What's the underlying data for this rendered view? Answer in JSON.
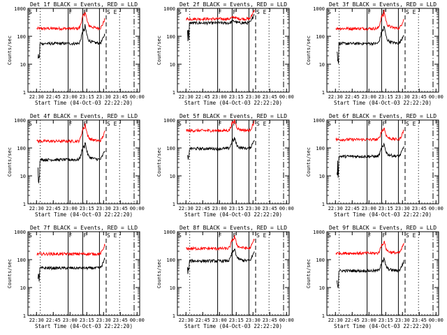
{
  "chart_data": {
    "type": "line",
    "series_legend": "BLACK = Events, RED = LLD",
    "xlabel": "Start Time (04-Oct-03 22:22:20)",
    "ylabel": "Counts/sec",
    "x_ticks": [
      "22:30",
      "22:45",
      "23:00",
      "23:15",
      "23:30",
      "23:45",
      "00:00"
    ],
    "x_tick_minutes": [
      7.67,
      22.67,
      37.67,
      52.67,
      67.67,
      82.67,
      97.67
    ],
    "xlim_minutes": [
      0,
      100
    ],
    "y_ticks": [
      "1",
      "10",
      "100",
      "1000"
    ],
    "ylim": [
      1,
      1000
    ],
    "yscale": "log",
    "markers": [
      {
        "label": "S",
        "minute": 0
      },
      {
        "label": "F",
        "minute": 36
      },
      {
        "label": "F",
        "minute": 49
      },
      {
        "label": "S",
        "minute": 70
      },
      {
        "label": "E",
        "minute": 76
      }
    ],
    "dotted_lines_minutes": [
      11,
      82
    ],
    "dashed_lines_minutes": [
      70
    ],
    "dashdot_lines_minutes": [
      95
    ],
    "panels": [
      {
        "title": "Det 1f BLACK = Events, RED = LLD",
        "black_base": 55,
        "red_base": 190,
        "red_bump": 3.0,
        "black_bump": 3.0
      },
      {
        "title": "Det 2f BLACK = Events, RED = LLD",
        "black_base": 300,
        "red_base": 420,
        "red_bump": 1.15,
        "black_bump": 1.15
      },
      {
        "title": "Det 3f BLACK = Events, RED = LLD",
        "black_base": 55,
        "red_base": 190,
        "red_bump": 3.0,
        "black_bump": 3.0
      },
      {
        "title": "Det 4f BLACK = Events, RED = LLD",
        "black_base": 38,
        "red_base": 175,
        "red_bump": 3.0,
        "black_bump": 3.0
      },
      {
        "title": "Det 5f BLACK = Events, RED = LLD",
        "black_base": 95,
        "red_base": 420,
        "red_bump": 2.0,
        "black_bump": 2.0
      },
      {
        "title": "Det 6f BLACK = Events, RED = LLD",
        "black_base": 50,
        "red_base": 200,
        "red_bump": 2.2,
        "black_bump": 2.2
      },
      {
        "title": "Det 7f BLACK = Events, RED = LLD",
        "black_base": 50,
        "red_base": 160,
        "red_bump": 1.0,
        "black_bump": 1.0
      },
      {
        "title": "Det 8f BLACK = Events, RED = LLD",
        "black_base": 90,
        "red_base": 250,
        "red_bump": 2.2,
        "black_bump": 2.2
      },
      {
        "title": "Det 9f BLACK = Events, RED = LLD",
        "black_base": 40,
        "red_base": 170,
        "red_bump": 2.2,
        "black_bump": 2.2
      }
    ],
    "colors": {
      "events": "#000000",
      "lld": "#ff0000",
      "axes": "#000000",
      "background": "#ffffff"
    }
  }
}
